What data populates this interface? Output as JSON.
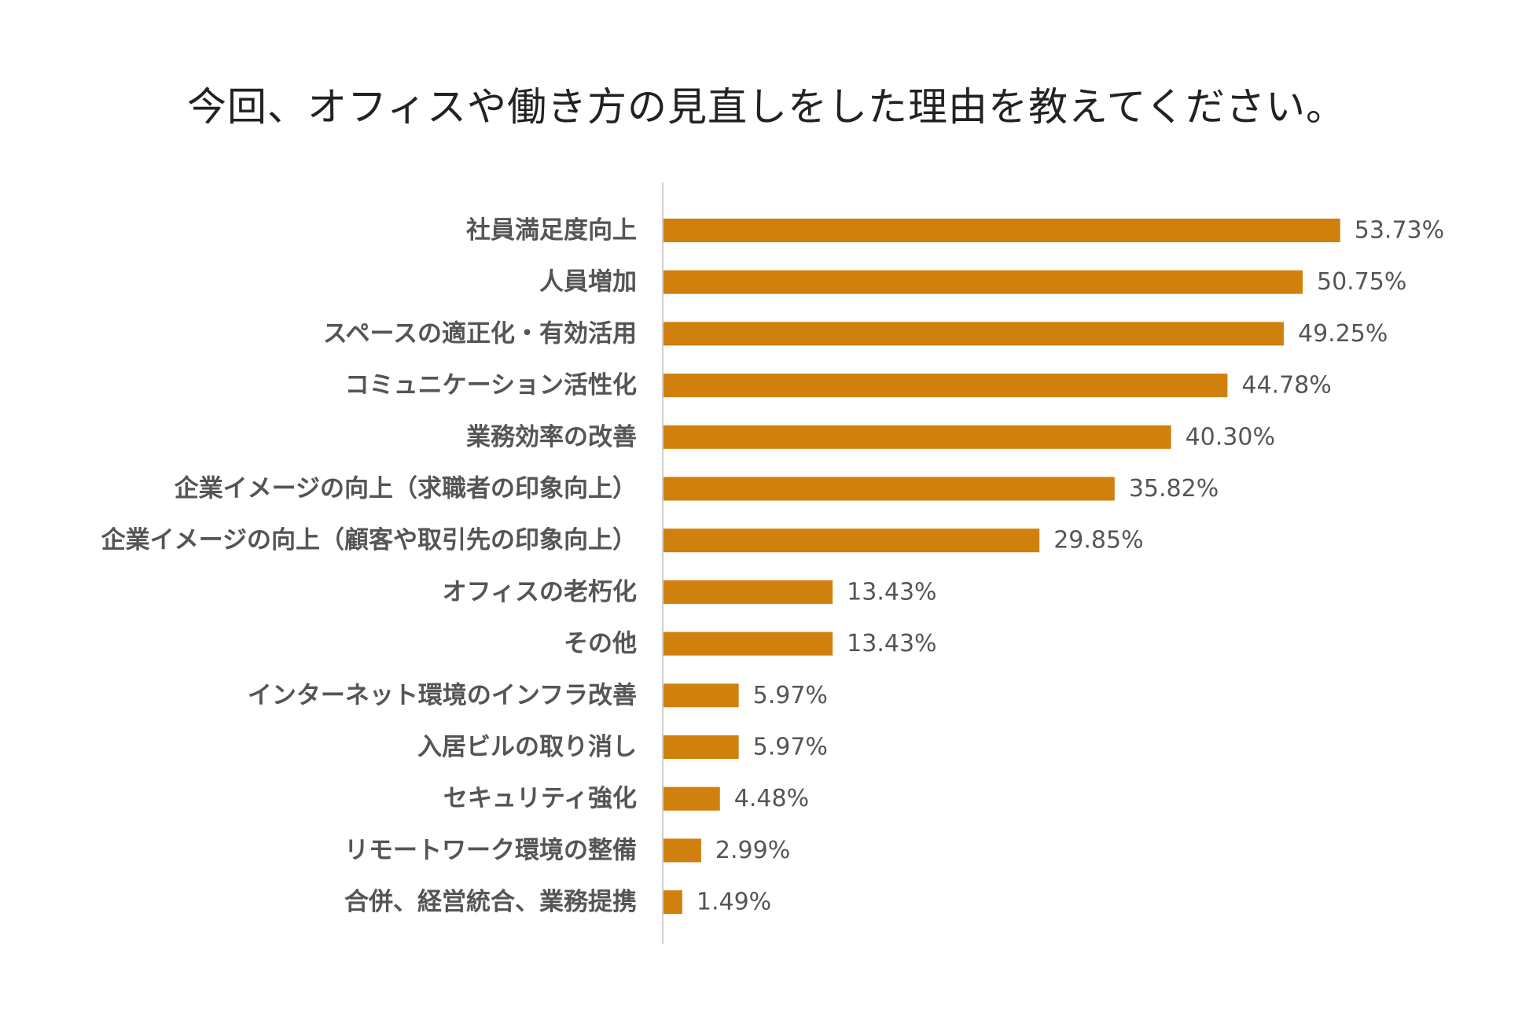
{
  "chart_data": {
    "type": "bar",
    "orientation": "horizontal",
    "title": "今回、オフィスや働き方の見直しをした理由を教えてください。",
    "xlabel": "",
    "ylabel": "",
    "xlim": [
      0,
      60
    ],
    "grid": false,
    "legend": "none",
    "bar_color": "#D0800D",
    "categories": [
      "社員満足度向上",
      "人員増加",
      "スペースの適正化・有効活用",
      "コミュニケーション活性化",
      "業務効率の改善",
      "企業イメージの向上（求職者の印象向上）",
      "企業イメージの向上（顧客や取引先の印象向上）",
      "オフィスの老朽化",
      "その他",
      "インターネット環境のインフラ改善",
      "入居ビルの取り消し",
      "セキュリティ強化",
      "リモートワーク環境の整備",
      "合併、経営統合、業務提携"
    ],
    "values": [
      53.73,
      50.75,
      49.25,
      44.78,
      40.3,
      35.82,
      29.85,
      13.43,
      13.43,
      5.97,
      5.97,
      4.48,
      2.99,
      1.49
    ],
    "value_labels": [
      "53.73%",
      "50.75%",
      "49.25%",
      "44.78%",
      "40.30%",
      "35.82%",
      "29.85%",
      "13.43%",
      "13.43%",
      "5.97%",
      "5.97%",
      "4.48%",
      "2.99%",
      "1.49%"
    ]
  }
}
